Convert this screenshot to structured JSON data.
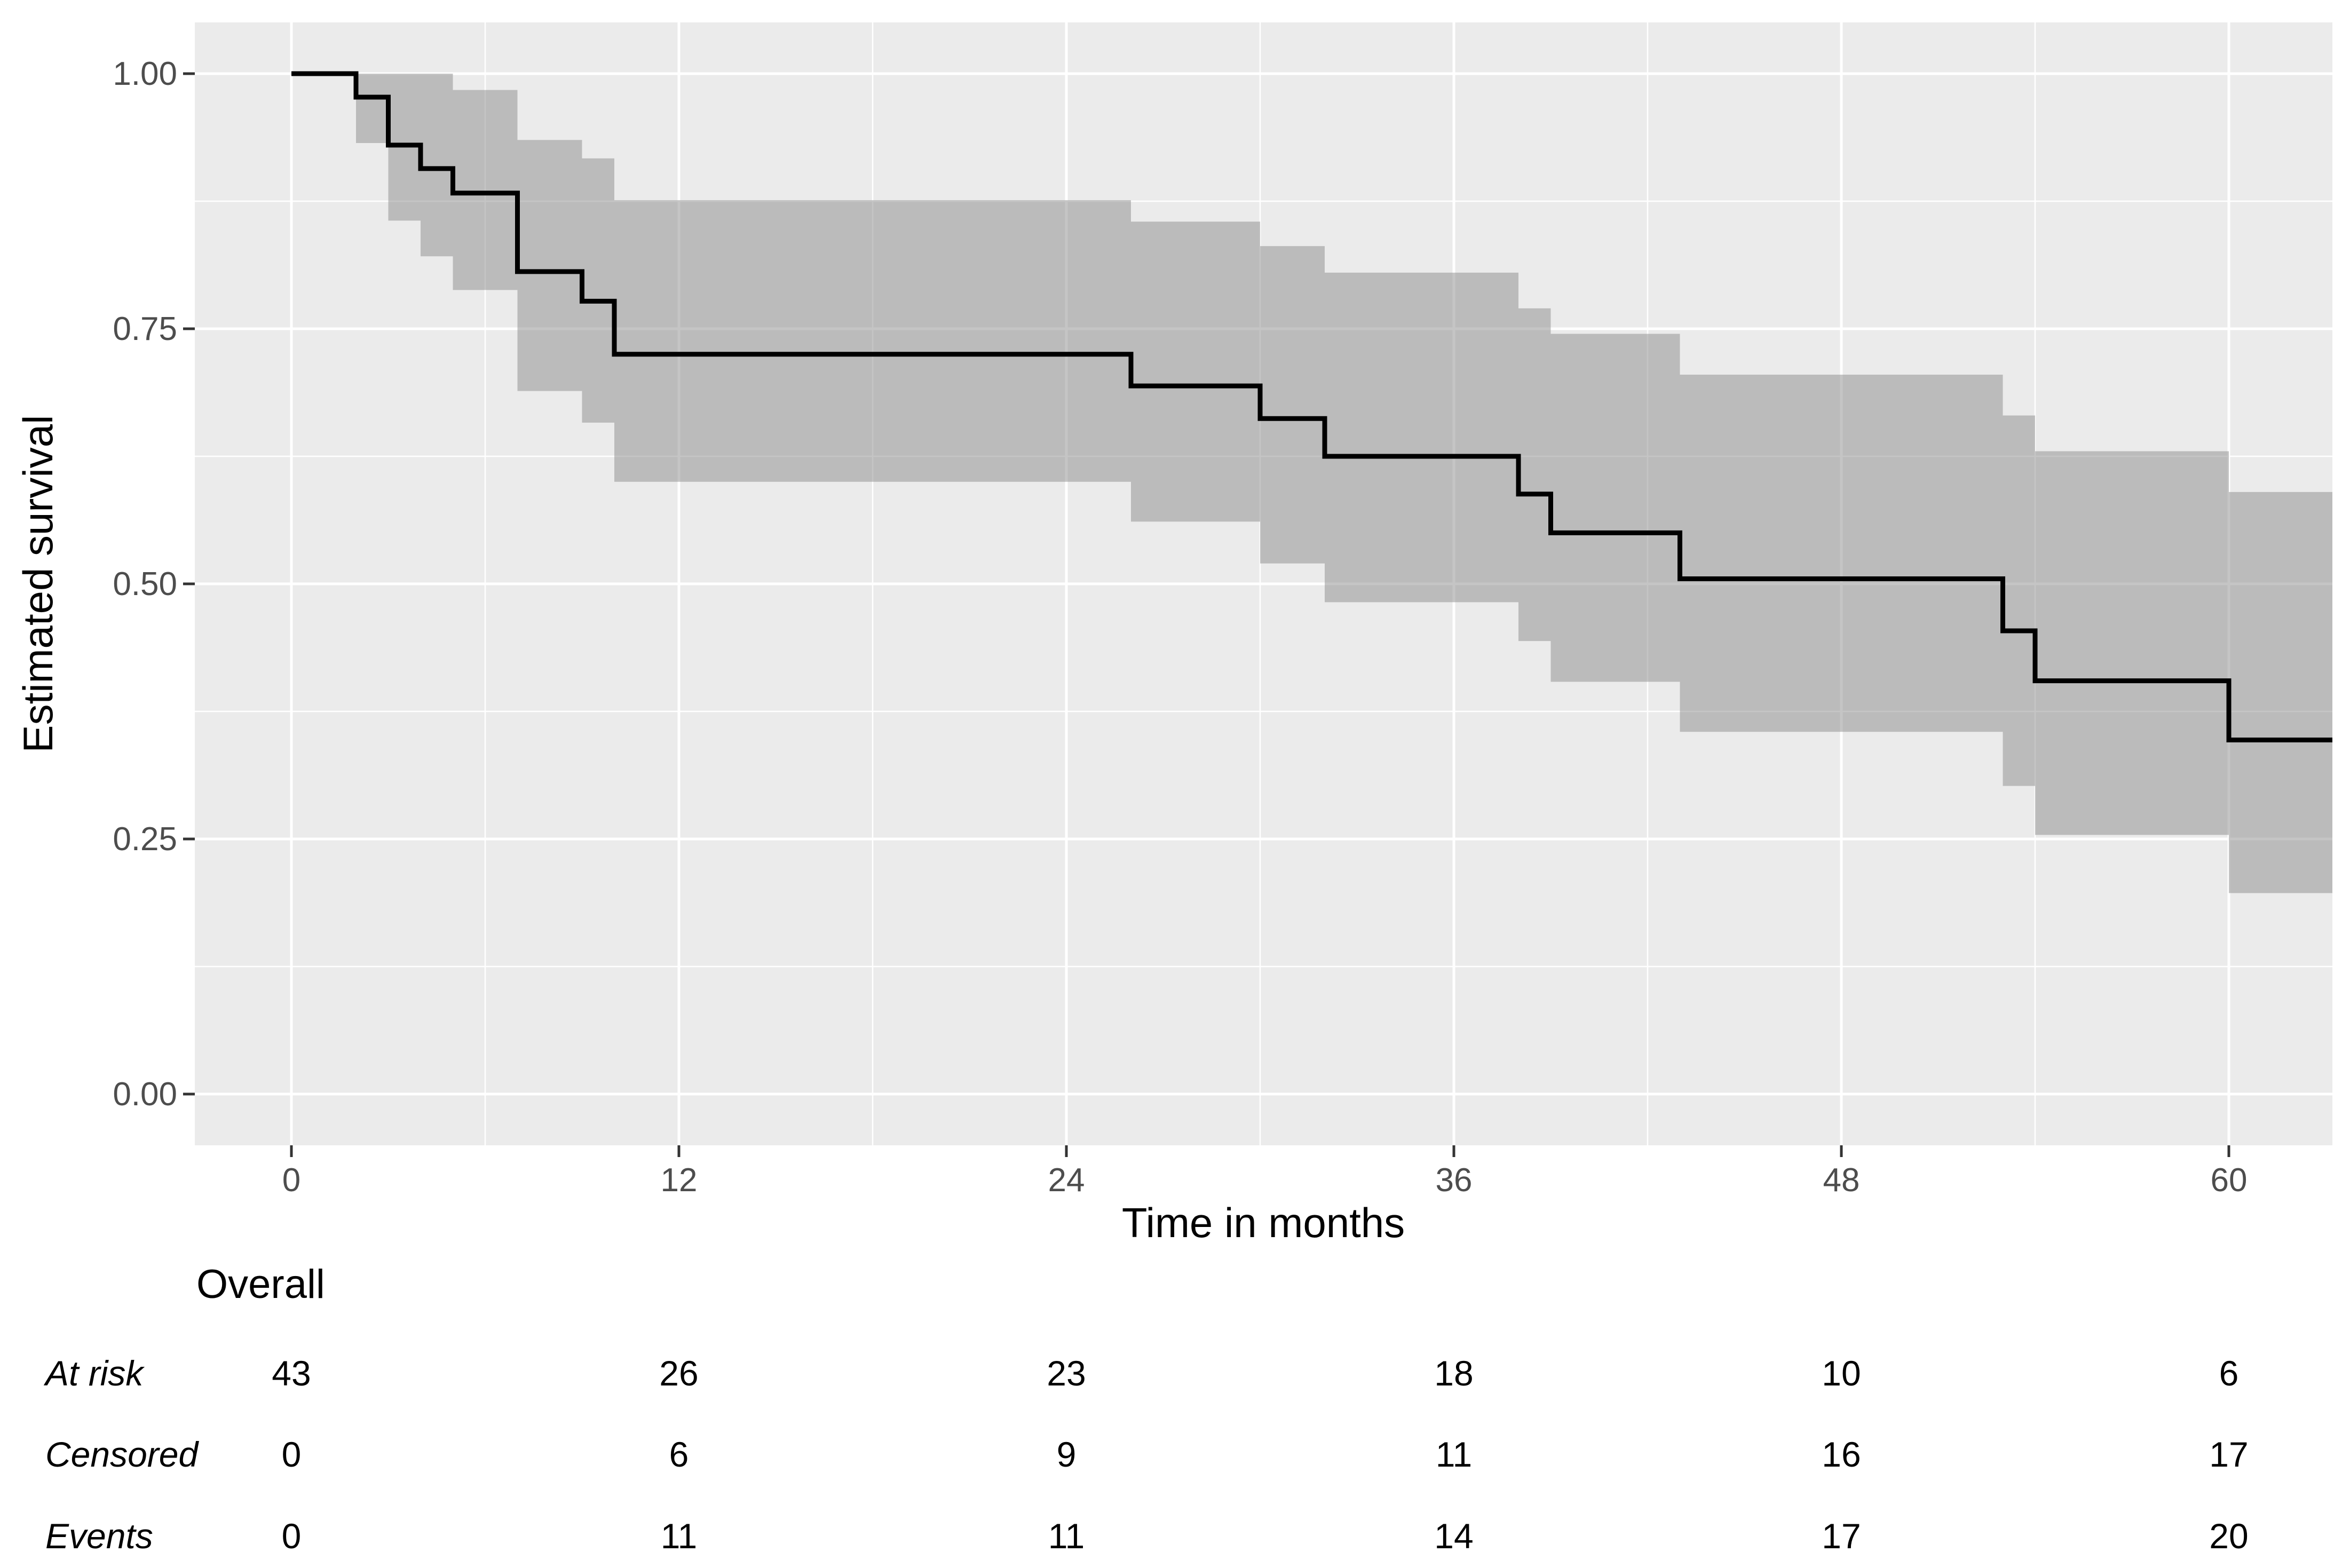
{
  "chart_data": {
    "type": "line",
    "subtype": "kaplan-meier-step-curve-with-confidence-band",
    "title": "",
    "xlabel": "Time in months",
    "ylabel": "Estimated survival",
    "x_ticks": [
      0,
      12,
      24,
      36,
      48,
      60
    ],
    "x_minor_ticks": [
      6,
      18,
      30,
      42,
      54
    ],
    "y_tick_values": [
      1.0,
      0.75,
      0.5,
      0.25,
      0.0
    ],
    "y_tick_labels": [
      "1.00",
      "0.75",
      "0.50",
      "0.25",
      "0.00"
    ],
    "y_minor_ticks": [
      0.875,
      0.625,
      0.375,
      0.125
    ],
    "xlim": [
      -3.0,
      63.2
    ],
    "ylim": [
      -0.05,
      1.05
    ],
    "grid": true,
    "legend_position": "none",
    "series": [
      {
        "name": "Overall",
        "type": "step",
        "step_times": [
          0,
          2,
          3,
          4,
          5,
          7,
          9,
          10,
          26,
          30,
          32,
          38,
          39,
          43,
          53,
          54,
          60
        ],
        "survival": [
          1.0,
          0.977,
          0.93,
          0.907,
          0.883,
          0.806,
          0.777,
          0.725,
          0.694,
          0.662,
          0.625,
          0.588,
          0.55,
          0.505,
          0.454,
          0.405,
          0.347
        ]
      }
    ],
    "confidence_band": {
      "times": [
        0,
        2,
        3,
        4,
        5,
        7,
        9,
        10,
        26,
        30,
        32,
        38,
        39,
        43,
        53,
        54,
        60
      ],
      "upper": [
        1.0,
        1.0,
        1.0,
        1.0,
        0.984,
        0.935,
        0.917,
        0.876,
        0.855,
        0.831,
        0.805,
        0.77,
        0.745,
        0.705,
        0.665,
        0.63,
        0.59
      ],
      "lower": [
        1.0,
        0.932,
        0.856,
        0.821,
        0.788,
        0.689,
        0.658,
        0.6,
        0.561,
        0.52,
        0.482,
        0.444,
        0.404,
        0.355,
        0.302,
        0.254,
        0.197
      ]
    }
  },
  "risk_table": {
    "group_label": "Overall",
    "time_points": [
      0,
      12,
      24,
      36,
      48,
      60
    ],
    "rows": [
      {
        "label": "At risk",
        "values": [
          43,
          26,
          23,
          18,
          10,
          6
        ]
      },
      {
        "label": "Censored",
        "values": [
          0,
          6,
          9,
          11,
          16,
          17
        ]
      },
      {
        "label": "Events",
        "values": [
          0,
          11,
          11,
          14,
          17,
          20
        ]
      }
    ]
  },
  "colors": {
    "panel_bg": "#EBEBEB",
    "grid": "#FFFFFF",
    "band_fill": "#8C8C8C",
    "band_opacity": "0.5",
    "curve": "#000000",
    "tick_text": "#4D4D4D",
    "tick_mark": "#333333",
    "text": "#000000"
  }
}
